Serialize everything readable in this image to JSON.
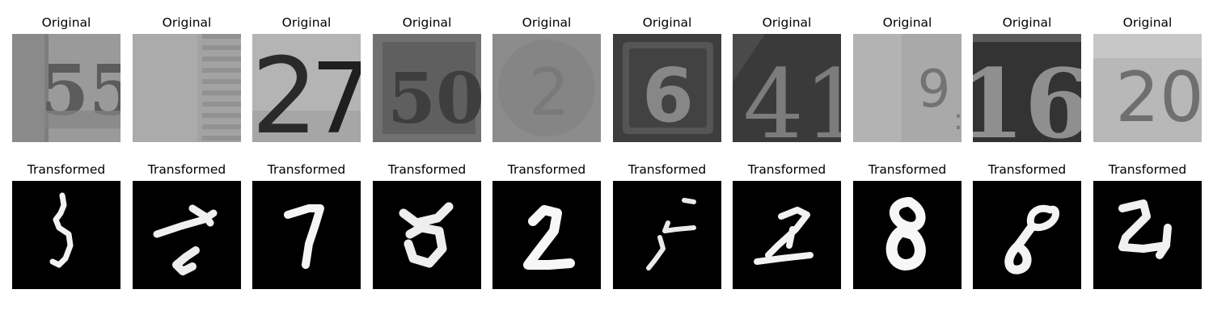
{
  "figure": {
    "top_row": {
      "title": "Original",
      "images": [
        {
          "description": "blurry gray SVHN crop showing digits 55",
          "glyph": "55"
        },
        {
          "description": "very blurry gray SVHN crop with faint vertical stripes",
          "glyph": ""
        },
        {
          "description": "gray SVHN crop with dark digits 27",
          "glyph": "27"
        },
        {
          "description": "dark gray SVHN crop showing digits 50",
          "glyph": "50"
        },
        {
          "description": "very blurry gray SVHN crop with faint 2",
          "glyph": "2"
        },
        {
          "description": "dark gray framed SVHN crop showing digit 6",
          "glyph": "6"
        },
        {
          "description": "dark SVHN crop with light digits 41",
          "glyph": "41"
        },
        {
          "description": "light gray blurry SVHN crop showing 9",
          "glyph": "9"
        },
        {
          "description": "dark SVHN crop with light digits 16",
          "glyph": "16"
        },
        {
          "description": "light gray blurry SVHN crop showing 20",
          "glyph": "20"
        }
      ]
    },
    "bottom_row": {
      "title": "Transformed",
      "images": [
        {
          "description": "white MNIST-style stroke resembling 5",
          "glyph": "5"
        },
        {
          "description": "white distorted MNIST-style stroke",
          "glyph": ""
        },
        {
          "description": "white MNIST-style stroke resembling 7",
          "glyph": "7"
        },
        {
          "description": "white distorted MNIST-style blob",
          "glyph": ""
        },
        {
          "description": "white MNIST-style stroke resembling 2",
          "glyph": "2"
        },
        {
          "description": "white thin MNIST-style stroke resembling 5",
          "glyph": "5"
        },
        {
          "description": "white MNIST-style stroke resembling 2",
          "glyph": "2"
        },
        {
          "description": "white thick MNIST-style stroke resembling 8",
          "glyph": "8"
        },
        {
          "description": "white MNIST-style stroke resembling 8",
          "glyph": "8"
        },
        {
          "description": "white MNIST-style stroke resembling 2",
          "glyph": "2"
        }
      ]
    }
  }
}
